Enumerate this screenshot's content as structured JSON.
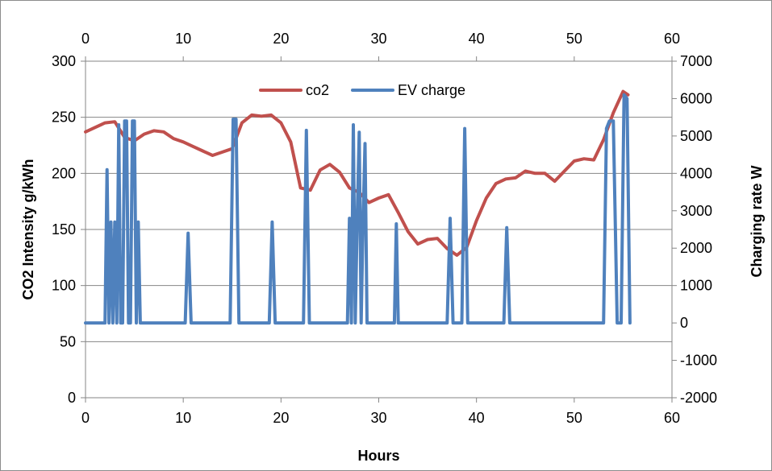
{
  "chart_data": {
    "type": "line",
    "title": "",
    "xlabel": "Hours",
    "ylabel_left": "CO2 Intensity g/kWh",
    "ylabel_right": "Charging rate W",
    "xlim": [
      0,
      60
    ],
    "x_ticks": [
      0,
      10,
      20,
      30,
      40,
      50,
      60
    ],
    "ylim_left": [
      0,
      300
    ],
    "y_ticks_left": [
      0,
      50,
      100,
      150,
      200,
      250,
      300
    ],
    "ylim_right": [
      -2000,
      7000
    ],
    "y_ticks_right": [
      -2000,
      -1000,
      0,
      1000,
      2000,
      3000,
      4000,
      5000,
      6000,
      7000
    ],
    "grid": "horizontal",
    "legend_position": "top-center",
    "series": [
      {
        "name": "co2",
        "axis": "left",
        "color": "#c0504d",
        "x": [
          0,
          1,
          2,
          3,
          4,
          5,
          6,
          7,
          8,
          9,
          10,
          11,
          12,
          13,
          14,
          15,
          16,
          17,
          18,
          19,
          20,
          21,
          22,
          23,
          24,
          25,
          26,
          27,
          28,
          29,
          30,
          31,
          32,
          33,
          34,
          35,
          36,
          37,
          38,
          39,
          40,
          41,
          42,
          43,
          44,
          45,
          46,
          47,
          48,
          49,
          50,
          51,
          52,
          53,
          54,
          55,
          55.5
        ],
        "values": [
          237,
          241,
          245,
          246,
          232,
          229,
          235,
          238,
          237,
          231,
          228,
          224,
          220,
          216,
          219,
          222,
          245,
          252,
          251,
          252,
          245,
          228,
          187,
          185,
          203,
          208,
          201,
          187,
          183,
          174,
          178,
          181,
          165,
          148,
          137,
          141,
          142,
          133,
          127,
          134,
          158,
          178,
          191,
          195,
          196,
          202,
          200,
          200,
          193,
          202,
          211,
          213,
          212,
          230,
          254,
          273,
          270
        ]
      },
      {
        "name": "EV charge",
        "axis": "right",
        "color": "#4f81bd",
        "x": [
          0,
          2,
          2.2,
          2.4,
          2.6,
          2.8,
          3.0,
          3.2,
          3.4,
          3.6,
          3.8,
          4.0,
          4.2,
          4.4,
          4.6,
          4.8,
          5.0,
          5.2,
          5.4,
          5.6,
          5.8,
          6.0,
          6.2,
          6.4,
          6.6,
          10.2,
          10.5,
          10.8,
          14.8,
          15.1,
          15.4,
          15.7,
          18.8,
          19.1,
          19.4,
          22.3,
          22.6,
          22.9,
          26.8,
          27.0,
          27.2,
          27.4,
          27.6,
          27.8,
          28.0,
          28.2,
          28.4,
          28.6,
          28.8,
          29.0,
          29.2,
          29.4,
          31.6,
          31.8,
          32.0,
          37.0,
          37.3,
          37.6,
          38.5,
          38.8,
          39.1,
          42.8,
          43.1,
          43.4,
          53.0,
          53.3,
          53.6,
          54.0,
          54.4,
          54.8,
          55.1,
          55.4,
          55.7
        ],
        "values": [
          0,
          0,
          4100,
          0,
          2700,
          0,
          2700,
          0,
          5300,
          0,
          0,
          5400,
          5400,
          0,
          0,
          5400,
          5400,
          0,
          2700,
          0,
          0,
          0,
          0,
          0,
          0,
          0,
          2400,
          0,
          0,
          5450,
          5450,
          0,
          0,
          2700,
          0,
          0,
          5150,
          0,
          0,
          2800,
          0,
          5300,
          0,
          2800,
          5100,
          0,
          2800,
          4800,
          0,
          0,
          0,
          0,
          0,
          2650,
          0,
          0,
          2800,
          0,
          0,
          5200,
          0,
          0,
          2550,
          0,
          0,
          5200,
          5400,
          5400,
          0,
          0,
          6100,
          6000,
          0
        ]
      }
    ]
  }
}
